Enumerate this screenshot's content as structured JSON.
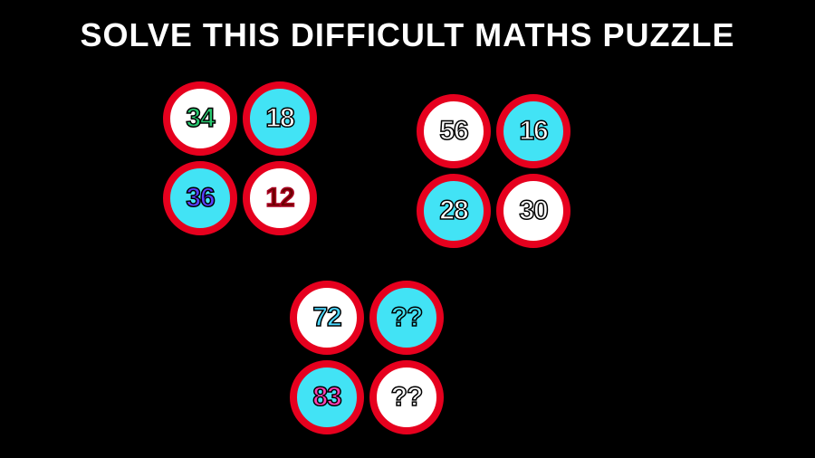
{
  "title": "SOLVE THIS DIFFICULT MATHS PUZZLE",
  "colors": {
    "background": "#000000",
    "title_text": "#ffffff",
    "ring": "#e6001e",
    "fill_white": "#ffffff",
    "fill_cyan": "#42e3f5"
  },
  "title_fontsize": 36,
  "circle_diameter": 82,
  "ring_width": 8,
  "number_fontsize": 30,
  "groups": {
    "g1": {
      "tl": {
        "value": "34",
        "fill": "white",
        "text_color": "#28c76f",
        "stroke": "#000000"
      },
      "tr": {
        "value": "18",
        "fill": "cyan",
        "text_color": "#ffffff",
        "stroke": "#000000"
      },
      "bl": {
        "value": "36",
        "fill": "cyan",
        "text_color": "#5a3fff",
        "stroke": "#000000"
      },
      "br": {
        "value": "12",
        "fill": "white",
        "text_color": "#6b0000",
        "stroke": "#aa0022"
      }
    },
    "g2": {
      "tl": {
        "value": "56",
        "fill": "white",
        "text_color": "#ffffff",
        "stroke": "#000000"
      },
      "tr": {
        "value": "16",
        "fill": "cyan",
        "text_color": "#ffffff",
        "stroke": "#000000"
      },
      "bl": {
        "value": "28",
        "fill": "cyan",
        "text_color": "#ffffff",
        "stroke": "#000000"
      },
      "br": {
        "value": "30",
        "fill": "white",
        "text_color": "#ffffff",
        "stroke": "#000000"
      }
    },
    "g3": {
      "tl": {
        "value": "72",
        "fill": "white",
        "text_color": "#4bd8ff",
        "stroke": "#000000"
      },
      "tr": {
        "value": "??",
        "fill": "cyan",
        "text_color": "#42e3f5",
        "stroke": "#000000"
      },
      "bl": {
        "value": "83",
        "fill": "cyan",
        "text_color": "#ff3fb4",
        "stroke": "#000000"
      },
      "br": {
        "value": "??",
        "fill": "white",
        "text_color": "#ffffff",
        "stroke": "#000000"
      }
    }
  }
}
